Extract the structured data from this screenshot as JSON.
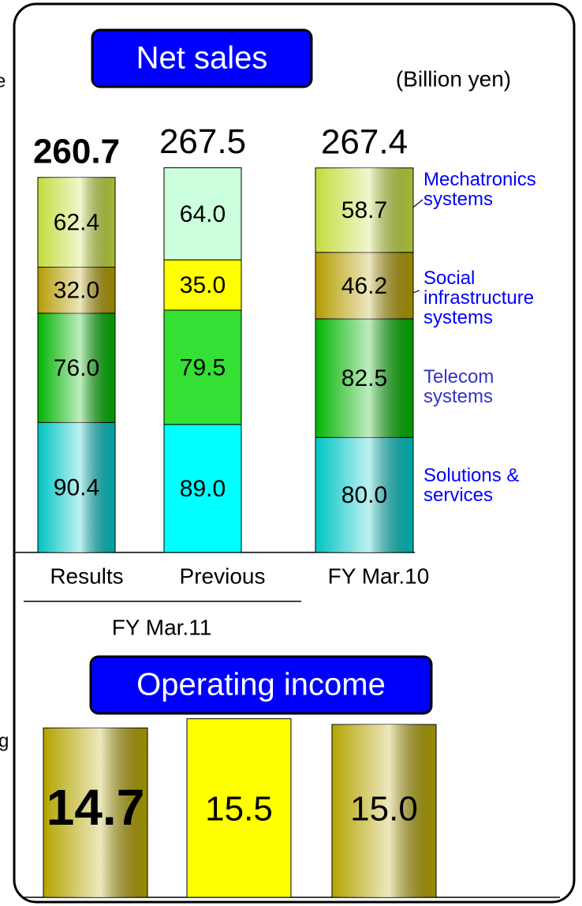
{
  "chart_data": [
    {
      "type": "stacked_bar",
      "title": "Net sales",
      "unit": "(Billion yen)",
      "categories": [
        "Results",
        "Previous",
        "FY Mar.10"
      ],
      "group_label": "FY Mar.11",
      "totals": [
        260.7,
        267.5,
        267.4
      ],
      "bold": [
        true,
        false,
        false
      ],
      "gradient": [
        true,
        false,
        true
      ],
      "series": [
        {
          "name": "Solutions & services",
          "label_color": "#0000ff",
          "colors": [
            "#00c4c4",
            "#00ffff",
            "#00c4c4"
          ],
          "values": [
            90.4,
            89.0,
            80.0
          ],
          "value_labels": [
            "90.4",
            "89.0",
            "80.0"
          ]
        },
        {
          "name": "Telecom systems",
          "label_color": "#3333cc",
          "colors": [
            "#00b400",
            "#33e033",
            "#00b400"
          ],
          "values": [
            76.0,
            79.5,
            82.5
          ],
          "value_labels": [
            "76.0",
            "79.5",
            "82.5"
          ]
        },
        {
          "name": "Social infrastructure systems",
          "label_color": "#0000ff",
          "colors": [
            "#b49c00",
            "#ffff00",
            "#b49c00"
          ],
          "values": [
            32.0,
            35.0,
            46.2
          ],
          "value_labels": [
            "32.0",
            "35.0",
            "46.2"
          ]
        },
        {
          "name": "Mechatronics systems",
          "label_color": "#0000ff",
          "colors": [
            "#c4dc3c",
            "#ccffdd",
            "#c4dc3c"
          ],
          "values": [
            62.4,
            64.0,
            58.7
          ],
          "value_labels": [
            "62.4",
            "64.0",
            "58.7"
          ]
        }
      ]
    },
    {
      "type": "bar",
      "title": "Operating income",
      "values": [
        14.7,
        15.5,
        15.0
      ],
      "value_labels": [
        "14.7",
        "15.5",
        "15.0"
      ],
      "bold": [
        true,
        false,
        false
      ],
      "colors": [
        "#b4a400",
        "#ffff00",
        "#b4a400"
      ],
      "gradient": [
        true,
        false,
        true
      ]
    }
  ],
  "clipped_text": [
    "e",
    "g"
  ]
}
